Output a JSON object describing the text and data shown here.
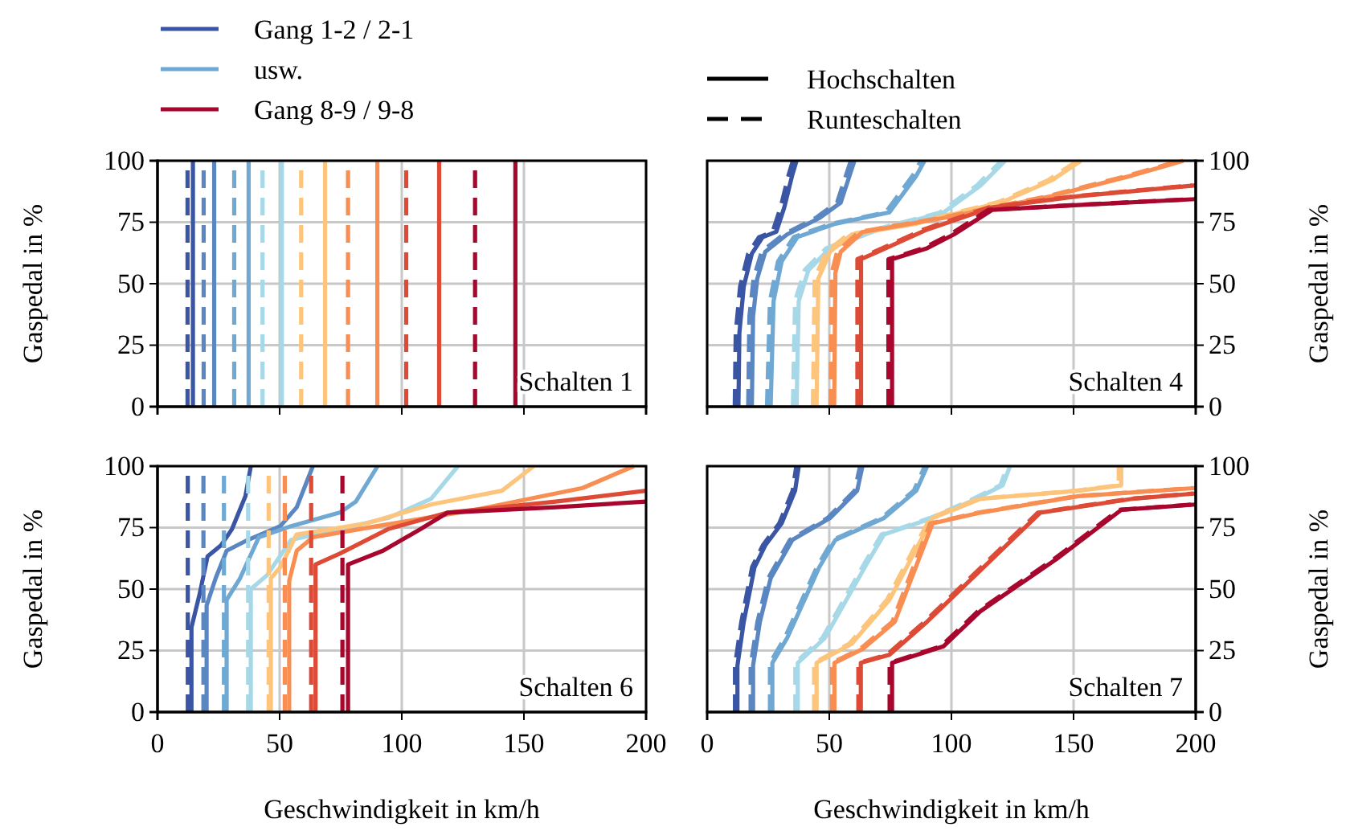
{
  "chart_data": [
    {
      "type": "line",
      "title": "Schalten 1",
      "ylabel": "Gaspedal in %",
      "xlim": [
        0,
        200
      ],
      "xticks": [
        0,
        50,
        100,
        150,
        200
      ],
      "ylim": [
        0,
        100
      ],
      "yticks": [
        0,
        25,
        50,
        75,
        100
      ],
      "grid": true,
      "tick_labels": "y",
      "legend": "top left",
      "marker": "none",
      "annotations": [
        "Hochschalten",
        "Runteschalten"
      ],
      "series": [
        {
          "name": "Gang 1-2 / 2-1",
          "color": "#3a55a4",
          "line_style": "solid",
          "x": [
            14.5,
            14.5
          ],
          "values": [
            0,
            100
          ]
        },
        {
          "color": "#3a55a4",
          "line_style": "dashed",
          "x": [
            12.3,
            12.3
          ],
          "values": [
            0,
            100
          ]
        },
        {
          "color": "#5a87c2",
          "line_style": "solid",
          "x": [
            23.2,
            23.2
          ],
          "values": [
            0,
            100
          ]
        },
        {
          "color": "#5a87c2",
          "line_style": "dashed",
          "x": [
            18.9,
            18.9
          ],
          "values": [
            0,
            100
          ]
        },
        {
          "name": "usw.",
          "color": "#6fa9d3",
          "line_style": "solid",
          "x": [
            37.3,
            37.3
          ],
          "values": [
            0,
            100
          ]
        },
        {
          "color": "#6fa9d3",
          "line_style": "dashed",
          "x": [
            31.4,
            31.4
          ],
          "values": [
            0,
            100
          ]
        },
        {
          "color": "#a6d8e8",
          "line_style": "solid",
          "x": [
            50.9,
            50.9
          ],
          "values": [
            0,
            100
          ]
        },
        {
          "color": "#a6d8e8",
          "line_style": "dashed",
          "x": [
            43,
            43
          ],
          "values": [
            0,
            100
          ]
        },
        {
          "color": "#fdc47c",
          "line_style": "solid",
          "x": [
            68.6,
            68.6
          ],
          "values": [
            0,
            100
          ]
        },
        {
          "color": "#fdc47c",
          "line_style": "dashed",
          "x": [
            58.8,
            58.8
          ],
          "values": [
            0,
            100
          ]
        },
        {
          "color": "#f98e52",
          "line_style": "solid",
          "x": [
            90,
            90
          ],
          "values": [
            0,
            100
          ]
        },
        {
          "color": "#f98e52",
          "line_style": "dashed",
          "x": [
            78,
            78
          ],
          "values": [
            0,
            100
          ]
        },
        {
          "color": "#dd4a36",
          "line_style": "solid",
          "x": [
            115.3,
            115.3
          ],
          "values": [
            0,
            100
          ]
        },
        {
          "color": "#dd4a36",
          "line_style": "dashed",
          "x": [
            101.8,
            101.8
          ],
          "values": [
            0,
            100
          ]
        },
        {
          "name": "Gang 8-9 / 9-8",
          "color": "#a8062d",
          "line_style": "solid",
          "x": [
            146.5,
            146.5
          ],
          "values": [
            0,
            100
          ]
        },
        {
          "color": "#a8062d",
          "line_style": "dashed",
          "x": [
            130,
            130
          ],
          "values": [
            0,
            100
          ]
        }
      ]
    },
    {
      "type": "line",
      "title": "Schalten 4",
      "y2label": "Gaspedal in %",
      "xlim": [
        0,
        200
      ],
      "xticks": [
        0,
        50,
        100,
        150,
        200
      ],
      "y2lim": [
        0,
        100
      ],
      "y2ticks": [
        0,
        25,
        50,
        75,
        100
      ],
      "grid": true,
      "tick_labels": "y",
      "marker": "none",
      "series": [
        {
          "color": "#3a55a4",
          "line_style": "solid",
          "axis": "y2",
          "x": [
            12.8,
            13.2,
            15,
            18.3,
            22.7,
            28.3,
            31.6,
            34.9,
            36.6
          ],
          "values": [
            0,
            30,
            48.9,
            62.2,
            68.9,
            71.1,
            81.1,
            94.4,
            100
          ]
        },
        {
          "color": "#3a55a4",
          "line_style": "dashed",
          "axis": "y2",
          "x": [
            11.3,
            11.7,
            13.5,
            16.8,
            21.2,
            26.8,
            30.1,
            33.4,
            35.1
          ],
          "values": [
            0,
            30,
            48.9,
            62.2,
            68.9,
            71.1,
            81.1,
            94.4,
            100
          ]
        },
        {
          "color": "#5a87c2",
          "line_style": "solid",
          "axis": "y2",
          "x": [
            18.3,
            18.8,
            20.5,
            23.8,
            32.7,
            45.9,
            54.7,
            60.3
          ],
          "values": [
            0,
            36.7,
            52,
            63,
            70,
            76.7,
            83,
            100
          ]
        },
        {
          "color": "#5a87c2",
          "line_style": "dashed",
          "axis": "y2",
          "x": [
            16.8,
            17.3,
            19,
            22.3,
            31.2,
            44.4,
            53.2,
            58.8
          ],
          "values": [
            0,
            36.7,
            52,
            63,
            70,
            76.7,
            83,
            100
          ]
        },
        {
          "color": "#6fa9d3",
          "line_style": "solid",
          "axis": "y2",
          "x": [
            26,
            27.2,
            30.5,
            37,
            52.5,
            74.6,
            85.7,
            89
          ],
          "values": [
            0,
            43,
            59,
            69,
            74.4,
            79,
            94,
            100
          ]
        },
        {
          "color": "#6fa9d3",
          "line_style": "dashed",
          "axis": "y2",
          "x": [
            24.5,
            25.7,
            29,
            35.5,
            51,
            73.1,
            84.2,
            87.5
          ],
          "values": [
            0,
            43,
            59,
            69,
            74.4,
            79,
            94,
            100
          ]
        },
        {
          "color": "#a6d8e8",
          "line_style": "solid",
          "axis": "y2",
          "x": [
            36.6,
            37.5,
            41.5,
            50.3,
            70.2,
            96.7,
            112,
            122
          ],
          "values": [
            0,
            43,
            55.6,
            64.4,
            72,
            78.9,
            90,
            100
          ]
        },
        {
          "color": "#a6d8e8",
          "line_style": "dashed",
          "axis": "y2",
          "x": [
            35.1,
            36,
            40,
            48.8,
            68.7,
            95.2,
            110.5,
            120.5
          ],
          "values": [
            0,
            43,
            55.6,
            64.4,
            72,
            78.9,
            90,
            100
          ]
        },
        {
          "color": "#fdc47c",
          "line_style": "solid",
          "axis": "y2",
          "x": [
            44.8,
            45.5,
            50.3,
            59.2,
            85.7,
            121,
            141,
            153
          ],
          "values": [
            0,
            52,
            63,
            70,
            74.4,
            83.3,
            92,
            100
          ]
        },
        {
          "color": "#fdc47c",
          "line_style": "dashed",
          "axis": "y2",
          "x": [
            43.3,
            44,
            48.8,
            57.7,
            84.2,
            119.5,
            139.5,
            151.5
          ],
          "values": [
            0,
            52,
            63,
            70,
            74.4,
            83.3,
            92,
            100
          ]
        },
        {
          "color": "#f98e52",
          "line_style": "solid",
          "axis": "y2",
          "x": [
            52,
            52.5,
            54.7,
            63.6,
            96.7,
            141,
            174,
            195
          ],
          "values": [
            0,
            54.4,
            63,
            71,
            76.7,
            85.6,
            94,
            100
          ]
        },
        {
          "color": "#f98e52",
          "line_style": "dashed",
          "axis": "y2",
          "x": [
            50.5,
            51,
            53.2,
            62.1,
            95.2,
            139.5,
            172.5,
            193.5
          ],
          "values": [
            0,
            54.4,
            63,
            71,
            76.7,
            85.6,
            94,
            100
          ]
        },
        {
          "color": "#dd4a36",
          "line_style": "solid",
          "axis": "y2",
          "x": [
            63,
            63,
            70,
            90,
            116.6,
            152,
            200
          ],
          "values": [
            0,
            60,
            63,
            72,
            81,
            85.6,
            90
          ]
        },
        {
          "color": "#dd4a36",
          "line_style": "dashed",
          "axis": "y2",
          "x": [
            61.5,
            61.5,
            68.5,
            88.5,
            115.1,
            150.5,
            198.5
          ],
          "values": [
            0,
            60,
            63,
            72,
            81,
            85.6,
            90
          ]
        },
        {
          "color": "#a8062d",
          "line_style": "solid",
          "axis": "y2",
          "x": [
            75.7,
            75.7,
            90,
            101,
            116.6,
            152,
            200
          ],
          "values": [
            0,
            60,
            64.4,
            70,
            80,
            82,
            84.4
          ]
        },
        {
          "color": "#a8062d",
          "line_style": "dashed",
          "axis": "y2",
          "x": [
            74.2,
            74.2,
            88.5,
            99.5,
            115.1,
            150.5,
            198.5
          ],
          "values": [
            0,
            60,
            64.4,
            70,
            80,
            82,
            84.4
          ]
        }
      ]
    },
    {
      "type": "line",
      "title": "Schalten 6",
      "ylabel": "Gaspedal in %",
      "xlabel": "Geschwindigkeit in km/h",
      "xlim": [
        0,
        200
      ],
      "xticks": [
        0,
        50,
        100,
        150,
        200
      ],
      "ylim": [
        0,
        100
      ],
      "yticks": [
        0,
        25,
        50,
        75,
        100
      ],
      "grid": true,
      "marker": "none",
      "series": [
        {
          "color": "#3a55a4",
          "line_style": "solid",
          "x": [
            13.9,
            13.9,
            17.2,
            20.5,
            26,
            30.5,
            36,
            38.2
          ],
          "values": [
            0,
            34.4,
            47.8,
            63.3,
            67.8,
            74.4,
            87.8,
            100
          ]
        },
        {
          "color": "#3a55a4",
          "line_style": "dashed",
          "x": [
            12.4,
            12.4
          ],
          "values": [
            0,
            100
          ]
        },
        {
          "color": "#5a87c2",
          "line_style": "solid",
          "x": [
            20.1,
            20.1,
            23.8,
            28.3,
            37,
            50.3,
            57,
            63.6
          ],
          "values": [
            0,
            43.3,
            54.4,
            65.6,
            70,
            75.6,
            83.3,
            100
          ]
        },
        {
          "color": "#5a87c2",
          "line_style": "dashed",
          "x": [
            18.8,
            18.8
          ],
          "values": [
            0,
            100
          ]
        },
        {
          "color": "#6fa9d3",
          "line_style": "solid",
          "x": [
            28.3,
            28.3,
            33.8,
            41.5,
            54.7,
            74.6,
            81.2,
            90.1
          ],
          "values": [
            0,
            45.6,
            54.4,
            71.1,
            75.6,
            81.1,
            85.6,
            100
          ]
        },
        {
          "color": "#6fa9d3",
          "line_style": "dashed",
          "x": [
            27.2,
            27.2
          ],
          "values": [
            0,
            100
          ]
        },
        {
          "color": "#a6d8e8",
          "line_style": "solid",
          "x": [
            38.2,
            38.2,
            44.8,
            54.7,
            74.6,
            94.4,
            112,
            123
          ],
          "values": [
            0,
            50,
            55.6,
            70,
            74.4,
            78.9,
            86.7,
            100
          ]
        },
        {
          "color": "#a6d8e8",
          "line_style": "dashed",
          "x": [
            37.1,
            37.1
          ],
          "values": [
            0,
            100
          ]
        },
        {
          "color": "#fdc47c",
          "line_style": "solid",
          "x": [
            46.4,
            46.4,
            50.3,
            56.9,
            85.6,
            112,
            141,
            154
          ],
          "values": [
            0,
            54.4,
            58.9,
            72.2,
            76.7,
            84.4,
            90,
            100
          ]
        },
        {
          "color": "#fdc47c",
          "line_style": "dashed",
          "x": [
            45.5,
            45.5
          ],
          "values": [
            0,
            100
          ]
        },
        {
          "color": "#f98e52",
          "line_style": "solid",
          "x": [
            53.9,
            53.9,
            57,
            63.6,
            90,
            129.8,
            174,
            195
          ],
          "values": [
            0,
            53.3,
            65.6,
            71.1,
            75.6,
            82.2,
            91.1,
            100
          ]
        },
        {
          "color": "#f98e52",
          "line_style": "dashed",
          "x": [
            52.1,
            52.1
          ],
          "values": [
            0,
            100
          ]
        },
        {
          "color": "#dd4a36",
          "line_style": "solid",
          "x": [
            64.7,
            64.7,
            74.6,
            94.4,
            118.8,
            163,
            200
          ],
          "values": [
            0,
            60,
            64.4,
            74.4,
            81.1,
            85.6,
            90
          ]
        },
        {
          "color": "#dd4a36",
          "line_style": "dashed",
          "x": [
            62.9,
            62.9
          ],
          "values": [
            0,
            100
          ]
        },
        {
          "color": "#a8062d",
          "line_style": "solid",
          "x": [
            78,
            78,
            92.3,
            107.7,
            118.8,
            163,
            200
          ],
          "values": [
            0,
            60,
            65.6,
            74.4,
            81.1,
            83.3,
            85.6
          ]
        },
        {
          "color": "#a8062d",
          "line_style": "dashed",
          "x": [
            75.7,
            75.7
          ],
          "values": [
            0,
            100
          ]
        }
      ]
    },
    {
      "type": "line",
      "title": "Schalten 7",
      "y2label": "Gaspedal in %",
      "xlabel": "Geschwindigkeit in km/h",
      "xlim": [
        0,
        200
      ],
      "xticks": [
        0,
        50,
        100,
        150,
        200
      ],
      "y2lim": [
        0,
        100
      ],
      "y2ticks": [
        0,
        25,
        50,
        75,
        100
      ],
      "grid": true,
      "marker": "none",
      "series": [
        {
          "color": "#3a55a4",
          "line_style": "solid",
          "axis": "y2",
          "x": [
            12.4,
            12.4,
            15,
            19.4,
            23.8,
            30.5,
            36,
            37.5
          ],
          "values": [
            0,
            18.9,
            36.7,
            58.9,
            67.8,
            76.7,
            90,
            100
          ]
        },
        {
          "color": "#3a55a4",
          "line_style": "dashed",
          "axis": "y2",
          "x": [
            11.4,
            11.4,
            14,
            18.4,
            22.8,
            29.5,
            35,
            36.5
          ],
          "values": [
            0,
            18.9,
            36.7,
            58.9,
            67.8,
            76.7,
            90,
            100
          ]
        },
        {
          "color": "#5a87c2",
          "line_style": "solid",
          "axis": "y2",
          "x": [
            18.8,
            18.8,
            21.6,
            26,
            34.9,
            50.3,
            61.4,
            63.6
          ],
          "values": [
            0,
            18.9,
            36.7,
            54.4,
            70,
            78.9,
            90,
            100
          ]
        },
        {
          "color": "#5a87c2",
          "line_style": "dashed",
          "axis": "y2",
          "x": [
            17.8,
            17.8,
            20.6,
            25,
            33.9,
            49.3,
            60.4,
            62.6
          ],
          "values": [
            0,
            18.9,
            36.7,
            54.4,
            70,
            78.9,
            90,
            100
          ]
        },
        {
          "color": "#6fa9d3",
          "line_style": "solid",
          "axis": "y2",
          "x": [
            26.7,
            26.7,
            32.7,
            45.9,
            52.5,
            72.4,
            85.6,
            90.1
          ],
          "values": [
            0,
            20,
            30,
            58.9,
            70,
            78.9,
            90,
            100
          ]
        },
        {
          "color": "#6fa9d3",
          "line_style": "dashed",
          "axis": "y2",
          "x": [
            25.7,
            25.7,
            31.7,
            44.9,
            51.5,
            71.4,
            84.6,
            89.1
          ],
          "values": [
            0,
            20,
            30,
            58.9,
            70,
            78.9,
            90,
            100
          ]
        },
        {
          "color": "#a6d8e8",
          "line_style": "solid",
          "axis": "y2",
          "x": [
            37.1,
            37.1,
            48.1,
            65.8,
            72.4,
            92.3,
            107.7,
            121,
            124
          ],
          "values": [
            0,
            20,
            30,
            61.1,
            72.2,
            78.9,
            85.6,
            92.2,
            100
          ]
        },
        {
          "color": "#a6d8e8",
          "line_style": "dashed",
          "axis": "y2",
          "x": [
            36.1,
            36.1,
            47.1,
            64.8,
            71.4,
            91.3,
            106.7,
            120,
            123
          ],
          "values": [
            0,
            20,
            30,
            61.1,
            72.2,
            78.9,
            85.6,
            92.2,
            100
          ]
        },
        {
          "color": "#fdc47c",
          "line_style": "solid",
          "axis": "y2",
          "x": [
            44.8,
            44.8,
            59.2,
            74.6,
            92.3,
            112,
            152,
            169.5,
            169.5
          ],
          "values": [
            0,
            20,
            27.8,
            45.6,
            78.9,
            86.7,
            90,
            92.2,
            100
          ]
        },
        {
          "color": "#fdc47c",
          "line_style": "dashed",
          "axis": "y2",
          "x": [
            43.8,
            43.8,
            58.2,
            73.6,
            91.3,
            111,
            151,
            168.5,
            168.5
          ],
          "values": [
            0,
            20,
            27.8,
            45.6,
            78.9,
            86.7,
            90,
            92.2,
            100
          ]
        },
        {
          "color": "#f98e52",
          "line_style": "solid",
          "axis": "y2",
          "x": [
            52.1,
            52.1,
            63.6,
            76.8,
            92.3,
            112,
            152,
            200
          ],
          "values": [
            0,
            20,
            25.6,
            36.7,
            76.7,
            81.1,
            87.8,
            91.1
          ]
        },
        {
          "color": "#f98e52",
          "line_style": "dashed",
          "axis": "y2",
          "x": [
            51.1,
            51.1,
            62.6,
            75.8,
            91.3,
            111,
            151,
            199
          ],
          "values": [
            0,
            20,
            25.6,
            36.7,
            76.7,
            81.1,
            87.8,
            91.1
          ]
        },
        {
          "color": "#dd4a36",
          "line_style": "solid",
          "axis": "y2",
          "x": [
            62.9,
            62.9,
            74.6,
            90,
            136.4,
            174,
            200
          ],
          "values": [
            0,
            20,
            23.3,
            36.7,
            81.1,
            86.7,
            88.9
          ]
        },
        {
          "color": "#dd4a36",
          "line_style": "dashed",
          "axis": "y2",
          "x": [
            61.9,
            61.9,
            73.6,
            89,
            135.4,
            173,
            199
          ],
          "values": [
            0,
            20,
            23.3,
            36.7,
            81.1,
            86.7,
            88.9
          ]
        },
        {
          "color": "#a8062d",
          "line_style": "solid",
          "axis": "y2",
          "x": [
            75.7,
            75.7,
            96.7,
            112,
            143,
            169.5,
            200
          ],
          "values": [
            0,
            20,
            26.7,
            41.1,
            62.2,
            82.2,
            84.4
          ]
        },
        {
          "color": "#a8062d",
          "line_style": "dashed",
          "axis": "y2",
          "x": [
            74.7,
            74.7,
            95.7,
            111,
            142,
            168.5,
            199
          ],
          "values": [
            0,
            20,
            26.7,
            41.1,
            62.2,
            82.2,
            84.4
          ]
        }
      ]
    }
  ]
}
